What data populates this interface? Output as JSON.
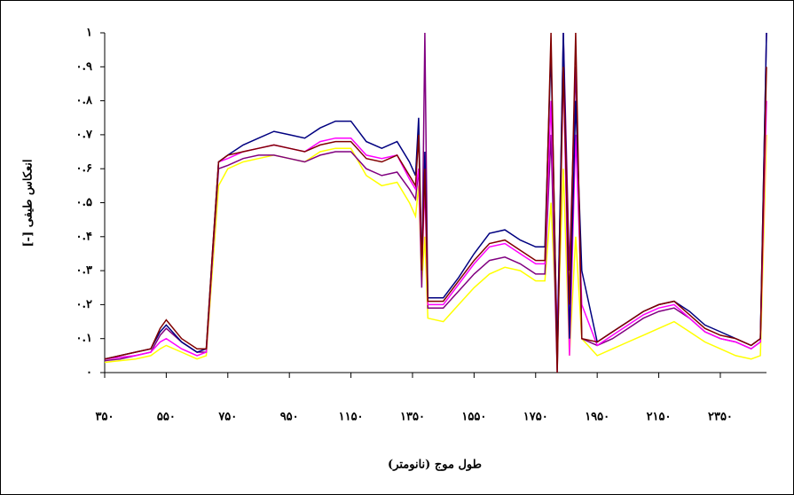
{
  "chart_data": {
    "type": "line",
    "x_label": "طول موج (نانومتر)",
    "y_label": "انعکاس طیفی [-]",
    "x": [
      350,
      400,
      450,
      500,
      530,
      550,
      600,
      650,
      680,
      700,
      720,
      750,
      800,
      850,
      900,
      950,
      1000,
      1050,
      1100,
      1150,
      1200,
      1250,
      1300,
      1340,
      1360,
      1370,
      1380,
      1390,
      1400,
      1450,
      1500,
      1550,
      1600,
      1650,
      1700,
      1750,
      1780,
      1800,
      1820,
      1840,
      1860,
      1880,
      1900,
      1950,
      2000,
      2050,
      2100,
      2150,
      2200,
      2250,
      2300,
      2350,
      2400,
      2450,
      2480,
      2500
    ],
    "series": [
      {
        "color": "#ffff00",
        "values": [
          0.03,
          0.035,
          0.04,
          0.05,
          0.07,
          0.08,
          0.06,
          0.04,
          0.05,
          0.3,
          0.55,
          0.6,
          0.62,
          0.63,
          0.64,
          0.63,
          0.62,
          0.65,
          0.66,
          0.66,
          0.58,
          0.55,
          0.56,
          0.5,
          0.46,
          0.55,
          0.26,
          0.4,
          0.16,
          0.15,
          0.2,
          0.25,
          0.29,
          0.31,
          0.3,
          0.27,
          0.27,
          0.5,
          0.1,
          0.6,
          0.05,
          0.4,
          0.1,
          0.05,
          0.07,
          0.09,
          0.11,
          0.13,
          0.15,
          0.12,
          0.09,
          0.07,
          0.05,
          0.04,
          0.05,
          0.7
        ]
      },
      {
        "color": "#800080",
        "values": [
          0.035,
          0.04,
          0.05,
          0.06,
          0.11,
          0.13,
          0.09,
          0.06,
          0.06,
          0.33,
          0.6,
          0.61,
          0.63,
          0.64,
          0.64,
          0.63,
          0.62,
          0.64,
          0.65,
          0.65,
          0.6,
          0.58,
          0.59,
          0.54,
          0.51,
          0.6,
          0.25,
          1,
          0.19,
          0.19,
          0.24,
          0.29,
          0.33,
          0.34,
          0.32,
          0.29,
          0.29,
          0.7,
          0,
          1,
          0.3,
          0.9,
          0.1,
          0.08,
          0.1,
          0.13,
          0.16,
          0.18,
          0.19,
          0.16,
          0.12,
          0.1,
          0.09,
          0.07,
          0.09,
          1
        ]
      },
      {
        "color": "#ff00ff",
        "values": [
          0.04,
          0.045,
          0.05,
          0.06,
          0.09,
          0.1,
          0.07,
          0.05,
          0.06,
          0.34,
          0.62,
          0.63,
          0.65,
          0.66,
          0.67,
          0.66,
          0.65,
          0.68,
          0.69,
          0.69,
          0.64,
          0.63,
          0.64,
          0.57,
          0.54,
          0.6,
          0.3,
          0.55,
          0.2,
          0.2,
          0.26,
          0.32,
          0.37,
          0.38,
          0.35,
          0.32,
          0.32,
          0.8,
          0.1,
          0.9,
          0.05,
          0.7,
          0.2,
          0.08,
          0.11,
          0.14,
          0.17,
          0.19,
          0.2,
          0.16,
          0.12,
          0.1,
          0.09,
          0.07,
          0.09,
          0.8
        ]
      },
      {
        "color": "#000080",
        "values": [
          0.04,
          0.05,
          0.06,
          0.07,
          0.12,
          0.14,
          0.09,
          0.06,
          0.07,
          0.35,
          0.62,
          0.64,
          0.67,
          0.69,
          0.71,
          0.7,
          0.69,
          0.72,
          0.74,
          0.74,
          0.68,
          0.66,
          0.68,
          0.62,
          0.58,
          0.75,
          0.3,
          0.65,
          0.22,
          0.22,
          0.28,
          0.35,
          0.41,
          0.42,
          0.39,
          0.37,
          0.37,
          0.95,
          0.05,
          1,
          0.1,
          0.8,
          0.3,
          0.09,
          0.12,
          0.15,
          0.18,
          0.2,
          0.21,
          0.18,
          0.14,
          0.12,
          0.1,
          0.08,
          0.1,
          1
        ]
      },
      {
        "color": "#800000",
        "values": [
          0.04,
          0.05,
          0.06,
          0.07,
          0.13,
          0.155,
          0.1,
          0.07,
          0.07,
          0.35,
          0.62,
          0.64,
          0.65,
          0.66,
          0.67,
          0.66,
          0.65,
          0.67,
          0.68,
          0.68,
          0.63,
          0.62,
          0.64,
          0.58,
          0.55,
          0.7,
          0.3,
          0.6,
          0.21,
          0.21,
          0.27,
          0.33,
          0.38,
          0.39,
          0.36,
          0.33,
          0.33,
          1,
          0,
          0.9,
          0.2,
          1,
          0.1,
          0.09,
          0.12,
          0.15,
          0.18,
          0.2,
          0.21,
          0.17,
          0.13,
          0.11,
          0.1,
          0.08,
          0.1,
          0.9
        ]
      }
    ],
    "xlim": [
      350,
      2500
    ],
    "xticks": [
      {
        "value": 350,
        "label": "۳۵۰"
      },
      {
        "value": 550,
        "label": "۵۵۰"
      },
      {
        "value": 750,
        "label": "۷۵۰"
      },
      {
        "value": 950,
        "label": "۹۵۰"
      },
      {
        "value": 1150,
        "label": "۱۱۵۰"
      },
      {
        "value": 1350,
        "label": "۱۳۵۰"
      },
      {
        "value": 1550,
        "label": "۱۵۵۰"
      },
      {
        "value": 1750,
        "label": "۱۷۵۰"
      },
      {
        "value": 1950,
        "label": "۱۹۵۰"
      },
      {
        "value": 2150,
        "label": "۲۱۵۰"
      },
      {
        "value": 2350,
        "label": "۲۳۵۰"
      }
    ],
    "ylim": [
      0,
      1
    ],
    "yticks": [
      {
        "value": 0,
        "label": "۰"
      },
      {
        "value": 0.1,
        "label": "۰.۱"
      },
      {
        "value": 0.2,
        "label": "۰.۲"
      },
      {
        "value": 0.3,
        "label": "۰.۳"
      },
      {
        "value": 0.4,
        "label": "۰.۴"
      },
      {
        "value": 0.5,
        "label": "۰.۵"
      },
      {
        "value": 0.6,
        "label": "۰.۶"
      },
      {
        "value": 0.7,
        "label": "۰.۷"
      },
      {
        "value": 0.8,
        "label": "۰.۸"
      },
      {
        "value": 0.9,
        "label": "۰.۹"
      },
      {
        "value": 1,
        "label": "۱"
      }
    ],
    "grid": false
  }
}
